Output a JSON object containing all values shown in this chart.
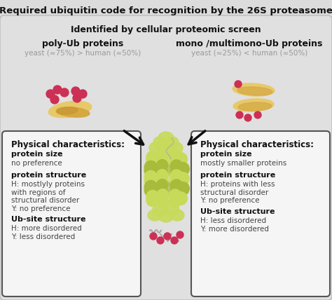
{
  "title": "Required ubiquitin code for recognition by the 26S proteasome",
  "subtitle": "Identified by cellular proteomic screen",
  "left_header": "poly-Ub proteins",
  "left_subheader": "yeast (≈75%) > human (≈50%)",
  "right_header": "mono /multimono-Ub proteins",
  "right_subheader": "yeast (≈25%) < human (≈50%)",
  "left_box_title": "Physical characteristics:",
  "right_box_title": "Physical characteristics:",
  "left_box_content": [
    [
      "protein size",
      "no preference"
    ],
    [
      "protein structure",
      "H: mostlyly proteins\nwith regions of\nstructural disorder\nY: no preference"
    ],
    [
      "Ub-site structure",
      "H: more disordered\nY: less disordered"
    ]
  ],
  "right_box_content": [
    [
      "protein size",
      "mostly smaller proteins"
    ],
    [
      "protein structure",
      "H: proteins with less\nstructural disorder\nY: no preference"
    ],
    [
      "Ub-site structure",
      "H: less disordered\nY: more disordered"
    ]
  ],
  "bg_color": "#dcdcdc",
  "inner_bg_color": "#e0e0e0",
  "box_fill": "#f5f5f5",
  "box_edge": "#555555",
  "title_color": "#111111",
  "header_color": "#111111",
  "subheader_color": "#999999",
  "bold_text_color": "#111111",
  "normal_text_color": "#444444",
  "arrow_color": "#111111",
  "protein_color1": "#e8c96a",
  "protein_color2": "#d4a843",
  "ub_pink": "#cc3055",
  "proteasome_color1": "#c8da5a",
  "proteasome_color2": "#a8bb3a",
  "proteasome_color3": "#90a828"
}
